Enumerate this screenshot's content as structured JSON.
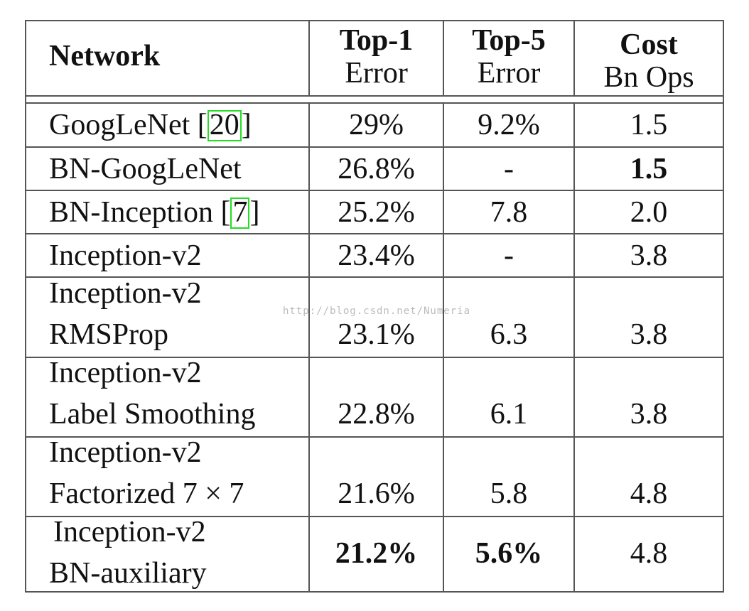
{
  "table": {
    "headers": [
      {
        "line1": "Network",
        "line2": ""
      },
      {
        "line1": "Top-1",
        "line2": "Error"
      },
      {
        "line1": "Top-5",
        "line2": "Error"
      },
      {
        "line1": "Cost",
        "line2": "Bn Ops"
      }
    ],
    "rows": [
      {
        "network_line1": "GoogLeNet [",
        "ref": "20",
        "network_after": "]",
        "network_line2": "",
        "top1": "29%",
        "top5": "9.2%",
        "cost": "1.5"
      },
      {
        "network_line1": "BN-GoogLeNet",
        "network_line2": "",
        "top1": "26.8%",
        "top5": "-",
        "cost": "1.5"
      },
      {
        "network_line1": "BN-Inception [",
        "ref": "7",
        "network_after": "]",
        "network_line2": "",
        "top1": "25.2%",
        "top5": "7.8",
        "cost": "2.0"
      },
      {
        "network_line1": "Inception-v2",
        "network_line2": "",
        "top1": "23.4%",
        "top5": "-",
        "cost": "3.8"
      },
      {
        "network_line1": "Inception-v2",
        "network_line2": "RMSProp",
        "top1": "23.1%",
        "top5": "6.3",
        "cost": "3.8"
      },
      {
        "network_line1": "Inception-v2",
        "network_line2": "Label Smoothing",
        "top1": "22.8%",
        "top5": "6.1",
        "cost": "3.8"
      },
      {
        "network_line1": "Inception-v2",
        "network_line2": "Factorized 7 × 7",
        "top1": "21.6%",
        "top5": "5.8",
        "cost": "4.8"
      },
      {
        "network_line1": "Inception-v2",
        "network_line2": "BN-auxiliary",
        "top1": "21.2%",
        "top5": "5.6%",
        "cost": "4.8"
      }
    ],
    "bold_cells": [
      "row2.cost",
      "row8.top1",
      "row8.top5"
    ]
  },
  "watermark": "http://blog.csdn.net/Numeria",
  "colors": {
    "border": "#555555",
    "ref_box": "#22dd22",
    "text": "#111111"
  }
}
